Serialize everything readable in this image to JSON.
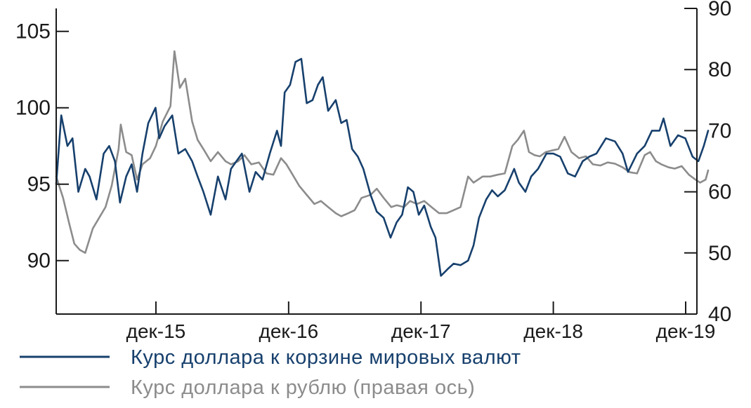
{
  "chart_data": {
    "type": "line",
    "x_tick_labels": [
      "дек-15",
      "дек-16",
      "дек-17",
      "дек-18",
      "дек-19"
    ],
    "y_left": {
      "ticks": [
        90,
        95,
        100,
        105
      ],
      "lim": [
        86.5,
        106.5
      ]
    },
    "y_right": {
      "ticks": [
        40,
        50,
        60,
        70,
        80,
        90
      ],
      "lim": [
        40,
        90
      ]
    },
    "x_range": [
      "2015-03",
      "2020-01"
    ],
    "series": [
      {
        "name": "Курс доллара к корзине мировых валют",
        "axis": "left",
        "color": "#17406d",
        "points": [
          [
            "2015-03-01",
            95.0
          ],
          [
            "2015-03-15",
            99.5
          ],
          [
            "2015-04-01",
            97.5
          ],
          [
            "2015-04-15",
            98.0
          ],
          [
            "2015-05-01",
            94.5
          ],
          [
            "2015-05-20",
            96.0
          ],
          [
            "2015-06-01",
            95.5
          ],
          [
            "2015-06-20",
            94.0
          ],
          [
            "2015-07-10",
            97.0
          ],
          [
            "2015-07-25",
            97.5
          ],
          [
            "2015-08-10",
            96.5
          ],
          [
            "2015-08-24",
            93.8
          ],
          [
            "2015-09-10",
            95.5
          ],
          [
            "2015-09-25",
            96.3
          ],
          [
            "2015-10-10",
            94.5
          ],
          [
            "2015-10-25",
            97.0
          ],
          [
            "2015-11-10",
            99.0
          ],
          [
            "2015-11-30",
            100.0
          ],
          [
            "2015-12-10",
            98.0
          ],
          [
            "2015-12-25",
            98.8
          ],
          [
            "2016-01-15",
            99.5
          ],
          [
            "2016-02-01",
            97.0
          ],
          [
            "2016-02-20",
            97.3
          ],
          [
            "2016-03-10",
            96.5
          ],
          [
            "2016-03-25",
            95.5
          ],
          [
            "2016-04-10",
            94.5
          ],
          [
            "2016-04-30",
            93.0
          ],
          [
            "2016-05-20",
            95.5
          ],
          [
            "2016-06-10",
            94.0
          ],
          [
            "2016-06-25",
            96.0
          ],
          [
            "2016-07-10",
            96.5
          ],
          [
            "2016-07-25",
            97.0
          ],
          [
            "2016-08-15",
            94.5
          ],
          [
            "2016-09-01",
            95.8
          ],
          [
            "2016-09-20",
            95.3
          ],
          [
            "2016-10-10",
            97.0
          ],
          [
            "2016-10-30",
            98.5
          ],
          [
            "2016-11-10",
            97.5
          ],
          [
            "2016-11-20",
            101.0
          ],
          [
            "2016-12-05",
            101.5
          ],
          [
            "2016-12-20",
            103.0
          ],
          [
            "2017-01-05",
            103.2
          ],
          [
            "2017-01-20",
            100.3
          ],
          [
            "2017-02-05",
            100.5
          ],
          [
            "2017-02-20",
            101.5
          ],
          [
            "2017-03-05",
            102.0
          ],
          [
            "2017-03-20",
            99.8
          ],
          [
            "2017-04-10",
            100.5
          ],
          [
            "2017-04-25",
            99.0
          ],
          [
            "2017-05-10",
            99.2
          ],
          [
            "2017-05-25",
            97.3
          ],
          [
            "2017-06-10",
            96.8
          ],
          [
            "2017-06-25",
            96.0
          ],
          [
            "2017-07-15",
            94.3
          ],
          [
            "2017-08-01",
            93.2
          ],
          [
            "2017-08-20",
            92.8
          ],
          [
            "2017-09-08",
            91.5
          ],
          [
            "2017-09-25",
            92.5
          ],
          [
            "2017-10-10",
            93.0
          ],
          [
            "2017-10-26",
            94.8
          ],
          [
            "2017-11-10",
            94.5
          ],
          [
            "2017-11-25",
            93.0
          ],
          [
            "2017-12-10",
            93.6
          ],
          [
            "2017-12-28",
            92.2
          ],
          [
            "2018-01-10",
            91.5
          ],
          [
            "2018-01-25",
            89.0
          ],
          [
            "2018-02-15",
            89.5
          ],
          [
            "2018-03-01",
            89.8
          ],
          [
            "2018-03-20",
            89.7
          ],
          [
            "2018-04-10",
            90.0
          ],
          [
            "2018-04-25",
            91.0
          ],
          [
            "2018-05-10",
            92.8
          ],
          [
            "2018-05-30",
            94.0
          ],
          [
            "2018-06-15",
            94.6
          ],
          [
            "2018-07-01",
            94.2
          ],
          [
            "2018-07-20",
            94.6
          ],
          [
            "2018-08-15",
            96.0
          ],
          [
            "2018-08-28",
            95.1
          ],
          [
            "2018-09-15",
            94.5
          ],
          [
            "2018-10-01",
            95.5
          ],
          [
            "2018-10-20",
            96.0
          ],
          [
            "2018-11-12",
            97.0
          ],
          [
            "2018-12-01",
            97.0
          ],
          [
            "2018-12-20",
            96.8
          ],
          [
            "2019-01-10",
            95.7
          ],
          [
            "2019-01-30",
            95.5
          ],
          [
            "2019-02-20",
            96.5
          ],
          [
            "2019-03-10",
            96.8
          ],
          [
            "2019-03-30",
            97.0
          ],
          [
            "2019-04-25",
            98.0
          ],
          [
            "2019-05-20",
            97.8
          ],
          [
            "2019-06-10",
            97.0
          ],
          [
            "2019-06-25",
            95.8
          ],
          [
            "2019-07-20",
            97.0
          ],
          [
            "2019-08-10",
            97.5
          ],
          [
            "2019-08-30",
            98.5
          ],
          [
            "2019-09-20",
            98.5
          ],
          [
            "2019-10-01",
            99.3
          ],
          [
            "2019-10-20",
            97.5
          ],
          [
            "2019-11-10",
            98.2
          ],
          [
            "2019-11-30",
            98.0
          ],
          [
            "2019-12-20",
            96.8
          ],
          [
            "2020-01-05",
            96.5
          ],
          [
            "2020-01-20",
            97.5
          ],
          [
            "2020-02-01",
            98.5
          ]
        ]
      },
      {
        "name": "Курс доллара к рублю (правая ось)",
        "axis": "right",
        "color": "#8c8c8c",
        "points": [
          [
            "2015-03-01",
            62.5
          ],
          [
            "2015-03-20",
            59.0
          ],
          [
            "2015-04-05",
            55.0
          ],
          [
            "2015-04-20",
            51.5
          ],
          [
            "2015-05-05",
            50.5
          ],
          [
            "2015-05-20",
            50.0
          ],
          [
            "2015-06-10",
            54.0
          ],
          [
            "2015-06-25",
            55.5
          ],
          [
            "2015-07-15",
            57.5
          ],
          [
            "2015-08-01",
            61.0
          ],
          [
            "2015-08-20",
            67.0
          ],
          [
            "2015-08-26",
            71.0
          ],
          [
            "2015-09-10",
            66.5
          ],
          [
            "2015-09-25",
            66.0
          ],
          [
            "2015-10-10",
            62.0
          ],
          [
            "2015-10-25",
            64.5
          ],
          [
            "2015-11-15",
            65.5
          ],
          [
            "2015-12-01",
            67.5
          ],
          [
            "2015-12-20",
            71.5
          ],
          [
            "2016-01-10",
            74.0
          ],
          [
            "2016-01-21",
            83.0
          ],
          [
            "2016-02-05",
            77.0
          ],
          [
            "2016-02-20",
            78.5
          ],
          [
            "2016-03-10",
            71.5
          ],
          [
            "2016-03-25",
            68.5
          ],
          [
            "2016-04-10",
            67.0
          ],
          [
            "2016-04-30",
            65.0
          ],
          [
            "2016-05-20",
            66.5
          ],
          [
            "2016-06-10",
            65.0
          ],
          [
            "2016-06-25",
            64.5
          ],
          [
            "2016-07-15",
            65.0
          ],
          [
            "2016-08-01",
            66.0
          ],
          [
            "2016-08-20",
            64.5
          ],
          [
            "2016-09-10",
            64.8
          ],
          [
            "2016-10-01",
            63.0
          ],
          [
            "2016-10-20",
            62.8
          ],
          [
            "2016-11-10",
            65.5
          ],
          [
            "2016-11-25",
            64.5
          ],
          [
            "2016-12-10",
            63.0
          ],
          [
            "2016-12-30",
            61.0
          ],
          [
            "2017-01-20",
            59.5
          ],
          [
            "2017-02-10",
            58.0
          ],
          [
            "2017-02-28",
            58.5
          ],
          [
            "2017-03-20",
            57.5
          ],
          [
            "2017-04-10",
            56.5
          ],
          [
            "2017-04-25",
            56.0
          ],
          [
            "2017-05-15",
            56.5
          ],
          [
            "2017-06-01",
            57.0
          ],
          [
            "2017-06-20",
            59.0
          ],
          [
            "2017-07-15",
            59.5
          ],
          [
            "2017-08-01",
            60.5
          ],
          [
            "2017-08-20",
            59.0
          ],
          [
            "2017-09-10",
            57.5
          ],
          [
            "2017-09-25",
            57.8
          ],
          [
            "2017-10-15",
            57.5
          ],
          [
            "2017-11-01",
            58.5
          ],
          [
            "2017-11-20",
            58.0
          ],
          [
            "2017-12-10",
            58.5
          ],
          [
            "2017-12-30",
            57.5
          ],
          [
            "2018-01-20",
            56.5
          ],
          [
            "2018-02-10",
            56.5
          ],
          [
            "2018-03-01",
            57.0
          ],
          [
            "2018-03-20",
            57.5
          ],
          [
            "2018-04-10",
            62.5
          ],
          [
            "2018-04-25",
            61.5
          ],
          [
            "2018-05-20",
            62.5
          ],
          [
            "2018-06-10",
            62.5
          ],
          [
            "2018-07-01",
            62.8
          ],
          [
            "2018-07-20",
            63.0
          ],
          [
            "2018-08-10",
            67.5
          ],
          [
            "2018-08-25",
            68.5
          ],
          [
            "2018-09-11",
            70.0
          ],
          [
            "2018-09-25",
            66.5
          ],
          [
            "2018-10-10",
            66.0
          ],
          [
            "2018-10-25",
            65.8
          ],
          [
            "2018-11-10",
            66.5
          ],
          [
            "2018-11-30",
            66.8
          ],
          [
            "2018-12-15",
            67.0
          ],
          [
            "2019-01-01",
            69.0
          ],
          [
            "2019-01-20",
            66.5
          ],
          [
            "2019-02-10",
            65.5
          ],
          [
            "2019-03-01",
            65.8
          ],
          [
            "2019-03-20",
            64.5
          ],
          [
            "2019-04-10",
            64.3
          ],
          [
            "2019-04-30",
            64.8
          ],
          [
            "2019-05-20",
            64.6
          ],
          [
            "2019-06-10",
            64.0
          ],
          [
            "2019-06-30",
            63.2
          ],
          [
            "2019-07-20",
            63.0
          ],
          [
            "2019-08-10",
            66.0
          ],
          [
            "2019-08-25",
            66.5
          ],
          [
            "2019-09-10",
            65.0
          ],
          [
            "2019-09-25",
            64.5
          ],
          [
            "2019-10-15",
            64.0
          ],
          [
            "2019-11-01",
            63.8
          ],
          [
            "2019-11-20",
            64.2
          ],
          [
            "2019-12-10",
            62.8
          ],
          [
            "2019-12-28",
            62.0
          ],
          [
            "2020-01-10",
            61.5
          ],
          [
            "2020-01-25",
            62.0
          ],
          [
            "2020-02-01",
            63.5
          ]
        ]
      }
    ],
    "legend_position": "bottom-left",
    "grid": false
  }
}
